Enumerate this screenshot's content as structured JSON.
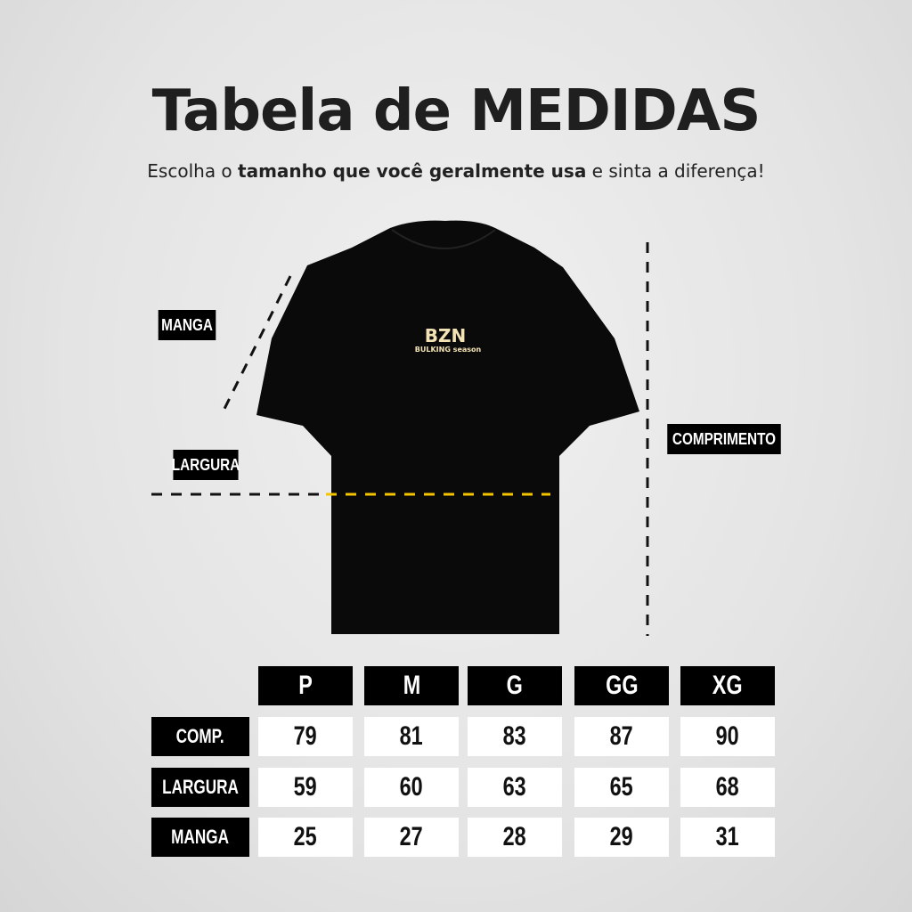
{
  "title": "Tabela de MEDIDAS",
  "subtitle": {
    "parts": [
      "Escolha o ",
      "tamanho que você geralmente usa",
      " e sinta a diferença!"
    ]
  },
  "shirt": {
    "logo": "BZN",
    "logo_sub": "BULKING season",
    "color": "#0a0a0a",
    "print_color": "#f3e2b3"
  },
  "labels": {
    "manga": "MANGA",
    "largura": "LARGURA",
    "comprimento": "COMPRIMENTO"
  },
  "measure_line_color": "#f5c400",
  "table": {
    "sizes": [
      "P",
      "M",
      "G",
      "GG",
      "XG"
    ],
    "rows": [
      {
        "label": "COMP.",
        "values": [
          "79",
          "81",
          "83",
          "87",
          "90"
        ]
      },
      {
        "label": "LARGURA",
        "values": [
          "59",
          "60",
          "63",
          "65",
          "68"
        ]
      },
      {
        "label": "MANGA",
        "values": [
          "25",
          "27",
          "28",
          "29",
          "31"
        ]
      }
    ]
  }
}
